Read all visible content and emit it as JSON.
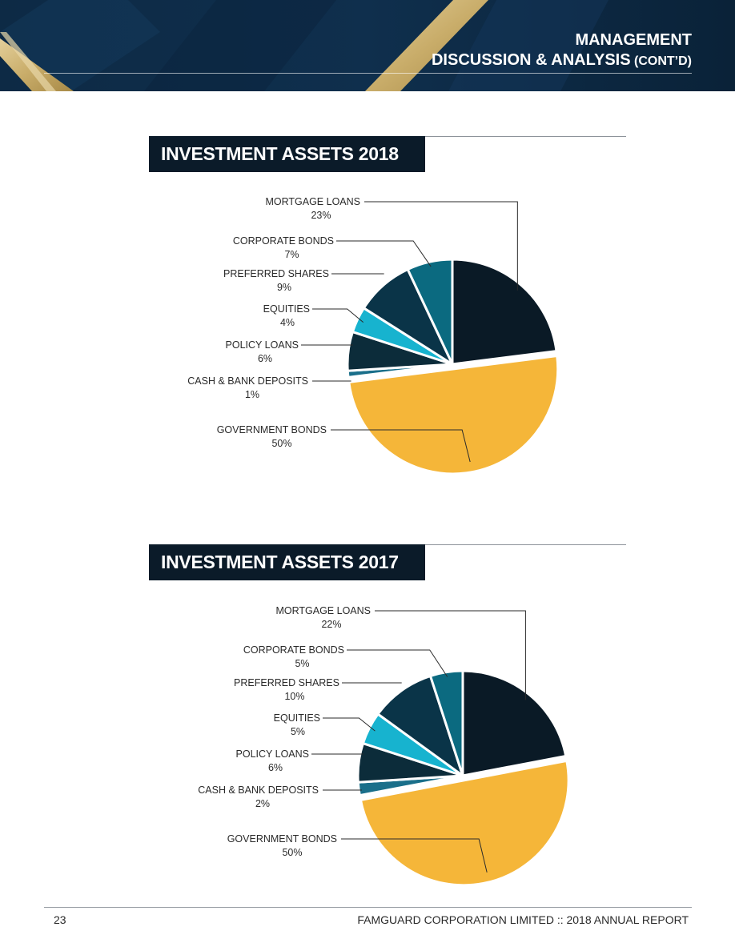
{
  "header": {
    "title_line1": "MANAGEMENT",
    "title_line2": "DISCUSSION & ANALYSIS",
    "title_suffix": "(CONT’D)"
  },
  "colors": {
    "header_navy": "#0e2a44",
    "gold": "#c9ad6a",
    "mortgage": "#0a1a26",
    "corporate": "#0b6a80",
    "preferred": "#0a3448",
    "equities": "#17b3cf",
    "policy": "#0c2c3a",
    "cash": "#1a6f8a",
    "government": "#f5b639"
  },
  "chart_data": [
    {
      "type": "pie",
      "title": "INVESTMENT ASSETS 2018",
      "slices": [
        {
          "label": "MORTGAGE LOANS",
          "value": 23,
          "value_label": "23%",
          "color_key": "mortgage"
        },
        {
          "label": "GOVERNMENT BONDS",
          "value": 50,
          "value_label": "50%",
          "color_key": "government"
        },
        {
          "label": "CASH & BANK DEPOSITS",
          "value": 1,
          "value_label": "1%",
          "color_key": "cash"
        },
        {
          "label": "POLICY LOANS",
          "value": 6,
          "value_label": "6%",
          "color_key": "policy"
        },
        {
          "label": "EQUITIES",
          "value": 4,
          "value_label": "4%",
          "color_key": "equities"
        },
        {
          "label": "PREFERRED SHARES",
          "value": 9,
          "value_label": "9%",
          "color_key": "preferred"
        },
        {
          "label": "CORPORATE BONDS",
          "value": 7,
          "value_label": "7%",
          "color_key": "corporate"
        }
      ]
    },
    {
      "type": "pie",
      "title": "INVESTMENT ASSETS 2017",
      "slices": [
        {
          "label": "MORTGAGE LOANS",
          "value": 22,
          "value_label": "22%",
          "color_key": "mortgage"
        },
        {
          "label": "GOVERNMENT BONDS",
          "value": 50,
          "value_label": "50%",
          "color_key": "government"
        },
        {
          "label": "CASH & BANK DEPOSITS",
          "value": 2,
          "value_label": "2%",
          "color_key": "cash"
        },
        {
          "label": "POLICY LOANS",
          "value": 6,
          "value_label": "6%",
          "color_key": "policy"
        },
        {
          "label": "EQUITIES",
          "value": 5,
          "value_label": "5%",
          "color_key": "equities"
        },
        {
          "label": "PREFERRED SHARES",
          "value": 10,
          "value_label": "10%",
          "color_key": "preferred"
        },
        {
          "label": "CORPORATE BONDS",
          "value": 5,
          "value_label": "5%",
          "color_key": "corporate"
        }
      ]
    }
  ],
  "footer": {
    "page_number": "23",
    "report_name": "FAMGUARD CORPORATION LIMITED  ::  2018 ANNUAL REPORT"
  }
}
